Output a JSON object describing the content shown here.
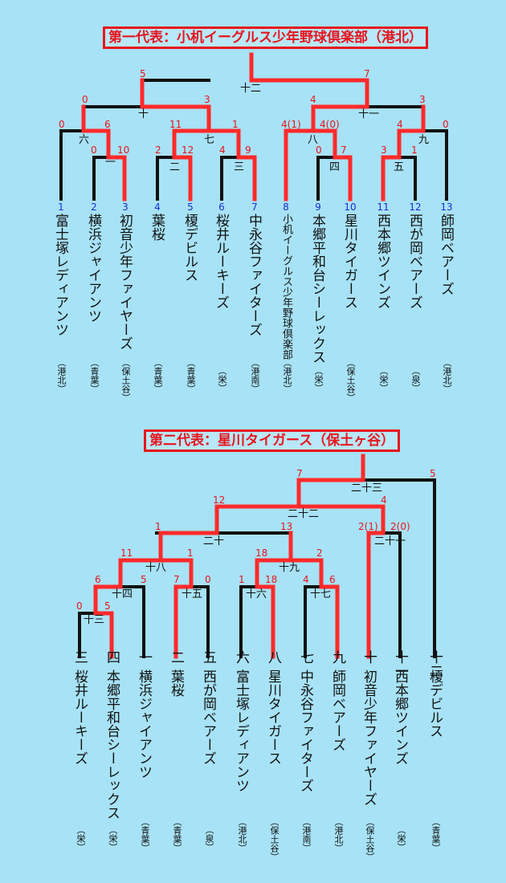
{
  "bracket1": {
    "title": "第一代表：小机イーグルス少年野球倶楽部（港北）",
    "teams": [
      {
        "no": "1",
        "name": "富士塚レディアンツ",
        "area": "（港北）"
      },
      {
        "no": "2",
        "name": "横浜ジャイアンツ",
        "area": "（青葉）"
      },
      {
        "no": "3",
        "name": "初音少年ファイヤーズ",
        "area": "（保土谷）"
      },
      {
        "no": "4",
        "name": "葉桜",
        "area": "（青葉）"
      },
      {
        "no": "5",
        "name": "榎デビルス",
        "area": "（青葉）"
      },
      {
        "no": "6",
        "name": "桜井ルーキーズ",
        "area": "（栄）"
      },
      {
        "no": "7",
        "name": "中永谷ファイターズ",
        "area": "（港南）"
      },
      {
        "no": "8",
        "name": "小机イーグルス少年野球倶楽部",
        "area": "（港北）"
      },
      {
        "no": "9",
        "name": "本郷平和台シーレックス",
        "area": "（栄）"
      },
      {
        "no": "10",
        "name": "星川タイガース",
        "area": "（保土谷）"
      },
      {
        "no": "11",
        "name": "西本郷ツインズ",
        "area": "（栄）"
      },
      {
        "no": "12",
        "name": "西が岡ベアーズ",
        "area": "（泉）"
      },
      {
        "no": "13",
        "name": "師岡ベアーズ",
        "area": "（港北）"
      }
    ],
    "games": [
      "一",
      "二",
      "三",
      "四",
      "五",
      "六",
      "七",
      "八",
      "九",
      "十",
      "十一",
      "十二"
    ],
    "scores": [
      "5",
      "7",
      "0",
      "3",
      "4",
      "3",
      "0",
      "6",
      "11",
      "1",
      "4(1)",
      "4(0)",
      "4",
      "0",
      "0",
      "10",
      "2",
      "12",
      "4",
      "9",
      "0",
      "7",
      "3",
      "1"
    ]
  },
  "bracket2": {
    "title": "第二代表：星川タイガース（保土ヶ谷）",
    "teams": [
      {
        "no": "三",
        "name": "桜井ルーキーズ",
        "area": "（栄）"
      },
      {
        "no": "四",
        "name": "本郷平和台シーレックス",
        "area": "（栄）"
      },
      {
        "no": "一",
        "name": "横浜ジャイアンツ",
        "area": "（青葉）"
      },
      {
        "no": "二",
        "name": "葉桜",
        "area": "（青葉）"
      },
      {
        "no": "五",
        "name": "西が岡ベアーズ",
        "area": "（泉）"
      },
      {
        "no": "六",
        "name": "富士塚レディアンツ",
        "area": "（港北）"
      },
      {
        "no": "八",
        "name": "星川タイガース",
        "area": "（保土谷）"
      },
      {
        "no": "七",
        "name": "中永谷ファイターズ",
        "area": "（港南）"
      },
      {
        "no": "九",
        "name": "師岡ベアーズ",
        "area": "（港北）"
      },
      {
        "no": "十",
        "name": "初音少年ファイヤーズ",
        "area": "（保土谷）"
      },
      {
        "no": "十一",
        "name": "西本郷ツインズ",
        "area": "（栄）"
      },
      {
        "no": "十二",
        "name": "榎デビルス",
        "area": "（青葉）"
      }
    ],
    "games": [
      "十三",
      "十四",
      "十五",
      "十六",
      "十七",
      "十八",
      "十九",
      "二十",
      "二十一",
      "二十二",
      "二十三"
    ],
    "scores": [
      "7",
      "5",
      "12",
      "4",
      "1",
      "13",
      "2(1)",
      "2(0)",
      "11",
      "1",
      "18",
      "2",
      "6",
      "5",
      "7",
      "0",
      "1",
      "18",
      "4",
      "6",
      "0",
      "5"
    ]
  }
}
